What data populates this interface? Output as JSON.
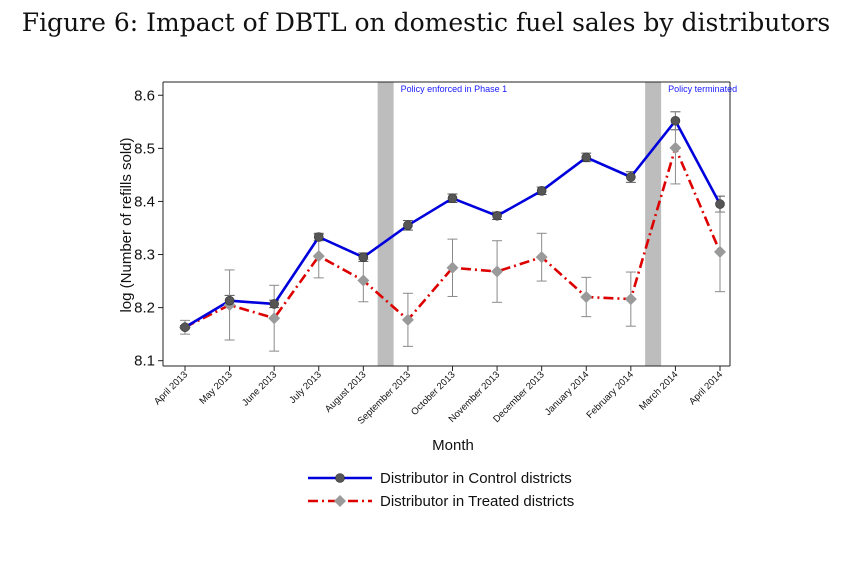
{
  "title": "Figure 6: Impact of DBTL on domestic fuel sales by distributors",
  "chart_data": {
    "type": "line",
    "xlabel": "Month",
    "ylabel": "log (Number of refills sold)",
    "categories": [
      "April 2013",
      "May 2013",
      "June 2013",
      "July 2013",
      "August 2013",
      "September 2013",
      "October 2013",
      "November 2013",
      "December 2013",
      "January 2014",
      "February 2014",
      "March 2014",
      "April 2014"
    ],
    "ylim": [
      8.09,
      8.625
    ],
    "yticks": [
      8.1,
      8.2,
      8.3,
      8.4,
      8.5,
      8.6
    ],
    "ytick_labels": [
      "8.1",
      "8.2",
      "8.3",
      "8.4",
      "8.5",
      "8.6"
    ],
    "grid": false,
    "legend_position": "bottom",
    "series": [
      {
        "name": "Distributor in Control districts",
        "color": "#0000dd",
        "line_style": "solid",
        "marker": "circle",
        "marker_color": "#555555",
        "values": [
          8.163,
          8.213,
          8.207,
          8.333,
          8.295,
          8.355,
          8.406,
          8.373,
          8.42,
          8.483,
          8.446,
          8.552,
          8.395
        ],
        "ci_low": [
          8.16,
          8.203,
          8.2,
          8.326,
          8.287,
          8.346,
          8.398,
          8.366,
          8.413,
          8.475,
          8.436,
          8.535,
          8.38
        ],
        "ci_high": [
          8.166,
          8.223,
          8.214,
          8.34,
          8.303,
          8.364,
          8.414,
          8.38,
          8.427,
          8.491,
          8.456,
          8.569,
          8.41
        ]
      },
      {
        "name": "Distributor in Treated districts",
        "color": "#dd0000",
        "line_style": "dash-dot",
        "marker": "diamond",
        "marker_color": "#9a9a9a",
        "values": [
          8.163,
          8.205,
          8.18,
          8.297,
          8.251,
          8.177,
          8.275,
          8.268,
          8.295,
          8.22,
          8.216,
          8.501,
          8.305
        ],
        "ci_low": [
          8.15,
          8.139,
          8.118,
          8.256,
          8.211,
          8.127,
          8.221,
          8.21,
          8.25,
          8.183,
          8.165,
          8.433,
          8.23
        ],
        "ci_high": [
          8.176,
          8.271,
          8.242,
          8.338,
          8.291,
          8.227,
          8.329,
          8.326,
          8.34,
          8.257,
          8.267,
          8.569,
          8.38
        ]
      }
    ],
    "shaded_bands": [
      {
        "between": [
          "August 2013",
          "September 2013"
        ],
        "label": "Policy enforced in Phase 1"
      },
      {
        "between": [
          "February 2014",
          "March 2014"
        ],
        "label": "Policy terminated"
      }
    ]
  }
}
